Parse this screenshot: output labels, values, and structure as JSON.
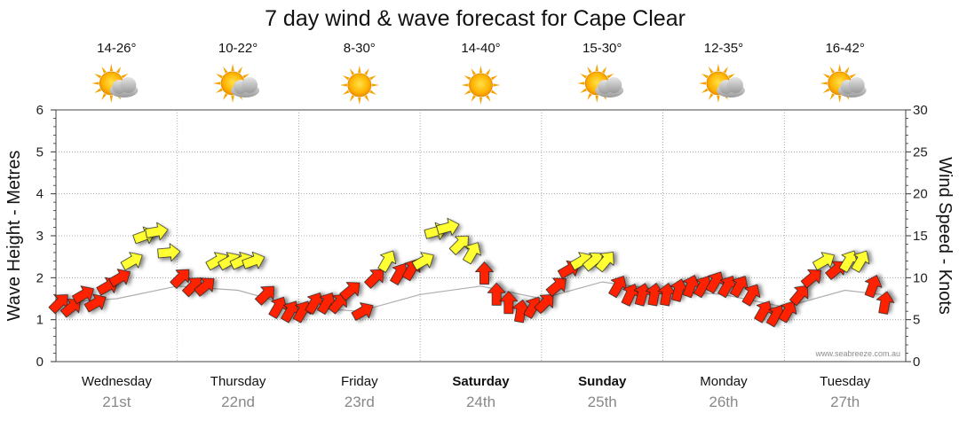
{
  "chart_data": {
    "type": "line",
    "title": "7 day wind & wave forecast for Cape Clear",
    "ylabel_left": "Wave Height - Metres",
    "ylabel_right": "Wind Speed - Knots",
    "ylim_left": [
      0,
      6
    ],
    "ylim_right": [
      0,
      30
    ],
    "left_ticks": [
      "0",
      "1",
      "2",
      "3",
      "4",
      "5",
      "6"
    ],
    "right_ticks": [
      "0",
      "5",
      "10",
      "15",
      "20",
      "25",
      "30"
    ],
    "watermark": "www.seabreeze.com.au",
    "days": [
      {
        "name": "Wednesday",
        "date": "21st",
        "bold": false,
        "temp": "14-26°",
        "icon": "partly-cloudy-icon"
      },
      {
        "name": "Thursday",
        "date": "22nd",
        "bold": false,
        "temp": "10-22°",
        "icon": "partly-cloudy-icon"
      },
      {
        "name": "Friday",
        "date": "23rd",
        "bold": false,
        "temp": "8-30°",
        "icon": "sunny-icon"
      },
      {
        "name": "Saturday",
        "date": "24th",
        "bold": true,
        "temp": "14-40°",
        "icon": "sunny-icon"
      },
      {
        "name": "Sunday",
        "date": "25th",
        "bold": true,
        "temp": "15-30°",
        "icon": "partly-cloudy-icon"
      },
      {
        "name": "Monday",
        "date": "26th",
        "bold": false,
        "temp": "12-35°",
        "icon": "partly-cloudy-icon"
      },
      {
        "name": "Tuesday",
        "date": "27th",
        "bold": false,
        "temp": "16-42°",
        "icon": "partly-cloudy-icon"
      }
    ],
    "series": [
      {
        "name": "Wind Speed (knots)",
        "axis": "right",
        "time_days": [
          0.0,
          0.1,
          0.2,
          0.3,
          0.4,
          0.5,
          0.6,
          0.7,
          0.8,
          0.9,
          1.0,
          1.1,
          1.2,
          1.3,
          1.4,
          1.5,
          1.6,
          1.7,
          1.8,
          1.9,
          2.0,
          2.1,
          2.2,
          2.3,
          2.4,
          2.5,
          2.6,
          2.7,
          2.8,
          2.9,
          3.0,
          3.1,
          3.2,
          3.3,
          3.4,
          3.5,
          3.6,
          3.7,
          3.8,
          3.9,
          4.0,
          4.1,
          4.2,
          4.3,
          4.4,
          4.5,
          4.6,
          4.7,
          4.8,
          4.9,
          5.0,
          5.1,
          5.2,
          5.3,
          5.4,
          5.5,
          5.6,
          5.7,
          5.8,
          5.9,
          6.0,
          6.1,
          6.2,
          6.3,
          6.4,
          6.5,
          6.6,
          6.7,
          6.8
        ],
        "values": [
          7,
          6.5,
          8,
          7,
          9,
          10,
          12,
          15,
          15.5,
          13,
          10,
          9,
          9,
          12,
          12,
          12,
          12,
          8,
          6.5,
          6,
          6,
          7,
          7,
          7,
          8.5,
          6,
          10,
          12,
          10.5,
          11,
          12,
          15.5,
          16,
          14,
          13,
          10.5,
          8,
          7,
          6,
          6.5,
          7,
          9,
          11,
          12,
          12,
          12,
          9,
          8,
          8,
          8,
          8,
          8.5,
          9,
          9,
          9.5,
          9,
          9,
          8,
          6,
          5.5,
          6,
          8,
          10,
          12,
          11,
          12,
          12,
          9,
          7
        ],
        "direction_deg": [
          315,
          320,
          330,
          330,
          330,
          330,
          330,
          340,
          350,
          355,
          315,
          315,
          320,
          330,
          330,
          335,
          340,
          315,
          300,
          300,
          300,
          300,
          300,
          310,
          320,
          330,
          315,
          300,
          300,
          300,
          330,
          345,
          345,
          315,
          300,
          270,
          270,
          270,
          280,
          300,
          315,
          320,
          330,
          330,
          320,
          310,
          300,
          295,
          285,
          280,
          280,
          285,
          290,
          300,
          300,
          300,
          300,
          300,
          300,
          300,
          300,
          310,
          320,
          330,
          320,
          300,
          300,
          290,
          280
        ]
      },
      {
        "name": "Wave Height (m)",
        "axis": "left",
        "time_days": [
          0.0,
          0.5,
          1.0,
          1.5,
          2.0,
          2.5,
          3.0,
          3.5,
          4.0,
          4.5,
          5.0,
          5.5,
          6.0,
          6.5,
          6.8
        ],
        "values": [
          1.4,
          1.5,
          1.8,
          1.7,
          1.3,
          1.2,
          1.6,
          1.8,
          1.5,
          1.9,
          1.7,
          1.6,
          1.3,
          1.7,
          1.6
        ]
      }
    ],
    "color_legend": {
      "fresh_wind": "#ffff33",
      "light_wind": "#ff2200",
      "yellow_threshold_knots": 12
    }
  }
}
